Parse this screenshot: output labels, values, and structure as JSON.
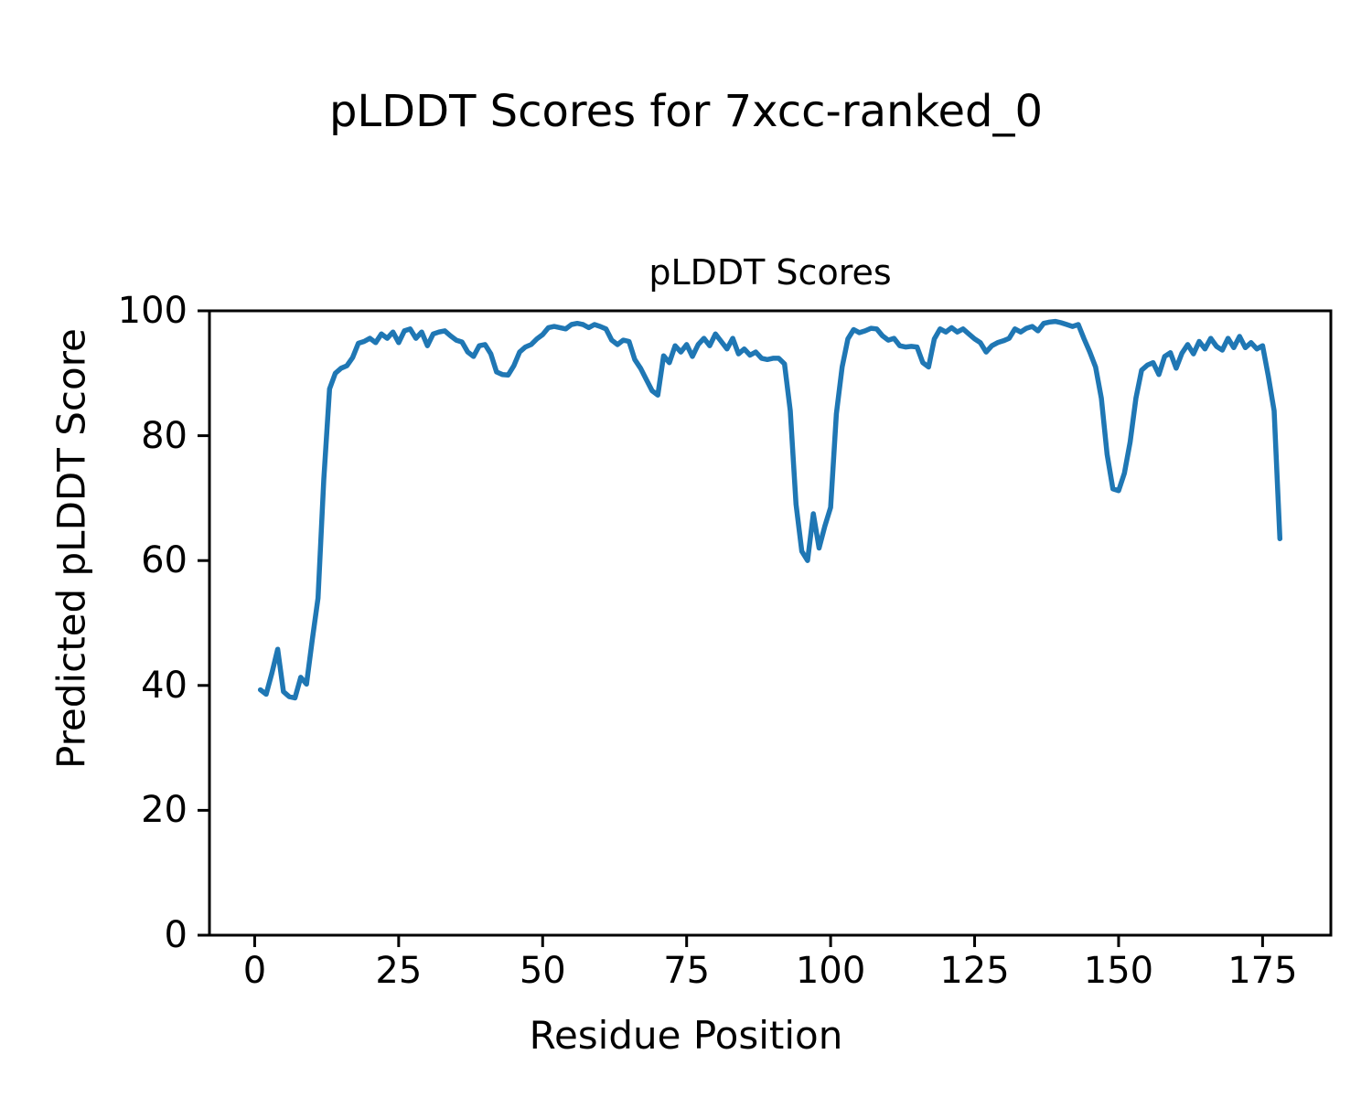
{
  "figure": {
    "suptitle": "pLDDT Scores for 7xcc-ranked_0",
    "background_color": "#ffffff",
    "text_color": "#000000"
  },
  "chart_data": {
    "type": "line",
    "title": "pLDDT Scores",
    "xlabel": "Residue Position",
    "ylabel": "Predicted pLDDT Score",
    "xlim": [
      -7.85,
      186.85
    ],
    "ylim": [
      0,
      100
    ],
    "xticks": [
      0,
      25,
      50,
      75,
      100,
      125,
      150,
      175
    ],
    "yticks": [
      0,
      20,
      40,
      60,
      80,
      100
    ],
    "grid": false,
    "legend": null,
    "line_color": "#1f77b4",
    "line_width": 5.5,
    "series": [
      {
        "name": "pLDDT",
        "x_start": 1,
        "x_step": 1,
        "values": [
          39.3,
          38.6,
          42.0,
          45.8,
          39.0,
          38.2,
          38.0,
          41.3,
          40.2,
          47.3,
          54.0,
          73.0,
          87.5,
          90.0,
          90.8,
          91.2,
          92.5,
          94.8,
          95.1,
          95.6,
          94.9,
          96.3,
          95.6,
          96.6,
          94.9,
          96.8,
          97.1,
          95.6,
          96.6,
          94.4,
          96.3,
          96.6,
          96.8,
          96.0,
          95.3,
          95.0,
          93.4,
          92.7,
          94.4,
          94.6,
          93.1,
          90.2,
          89.8,
          89.7,
          91.2,
          93.4,
          94.2,
          94.6,
          95.5,
          96.2,
          97.3,
          97.5,
          97.3,
          97.1,
          97.8,
          98.0,
          97.8,
          97.3,
          97.8,
          97.5,
          97.1,
          95.3,
          94.6,
          95.3,
          95.1,
          92.2,
          90.8,
          89.0,
          87.2,
          86.5,
          92.8,
          91.7,
          94.4,
          93.4,
          94.6,
          92.7,
          94.6,
          95.6,
          94.4,
          96.3,
          95.1,
          93.9,
          95.6,
          93.1,
          93.9,
          92.9,
          93.4,
          92.4,
          92.2,
          92.4,
          92.4,
          91.5,
          84.0,
          69.0,
          61.5,
          60.0,
          67.5,
          62.0,
          65.5,
          68.5,
          83.5,
          91.0,
          95.5,
          97.0,
          96.5,
          96.8,
          97.2,
          97.1,
          96.0,
          95.3,
          95.6,
          94.4,
          94.2,
          94.3,
          94.2,
          91.7,
          91.0,
          95.5,
          97.1,
          96.6,
          97.3,
          96.6,
          97.1,
          96.3,
          95.5,
          94.9,
          93.4,
          94.4,
          94.9,
          95.2,
          95.6,
          97.1,
          96.6,
          97.2,
          97.5,
          96.8,
          98.0,
          98.2,
          98.3,
          98.1,
          97.8,
          97.5,
          97.8,
          95.5,
          93.4,
          91.0,
          86.0,
          77.0,
          71.5,
          71.2,
          74.0,
          79.0,
          86.0,
          90.5,
          91.3,
          91.7,
          89.8,
          92.7,
          93.3,
          90.8,
          93.2,
          94.6,
          93.1,
          95.1,
          93.9,
          95.6,
          94.3,
          93.7,
          95.6,
          94.1,
          95.9,
          94.1,
          94.9,
          93.9,
          94.4,
          89.5,
          84.0,
          63.5
        ]
      }
    ]
  }
}
